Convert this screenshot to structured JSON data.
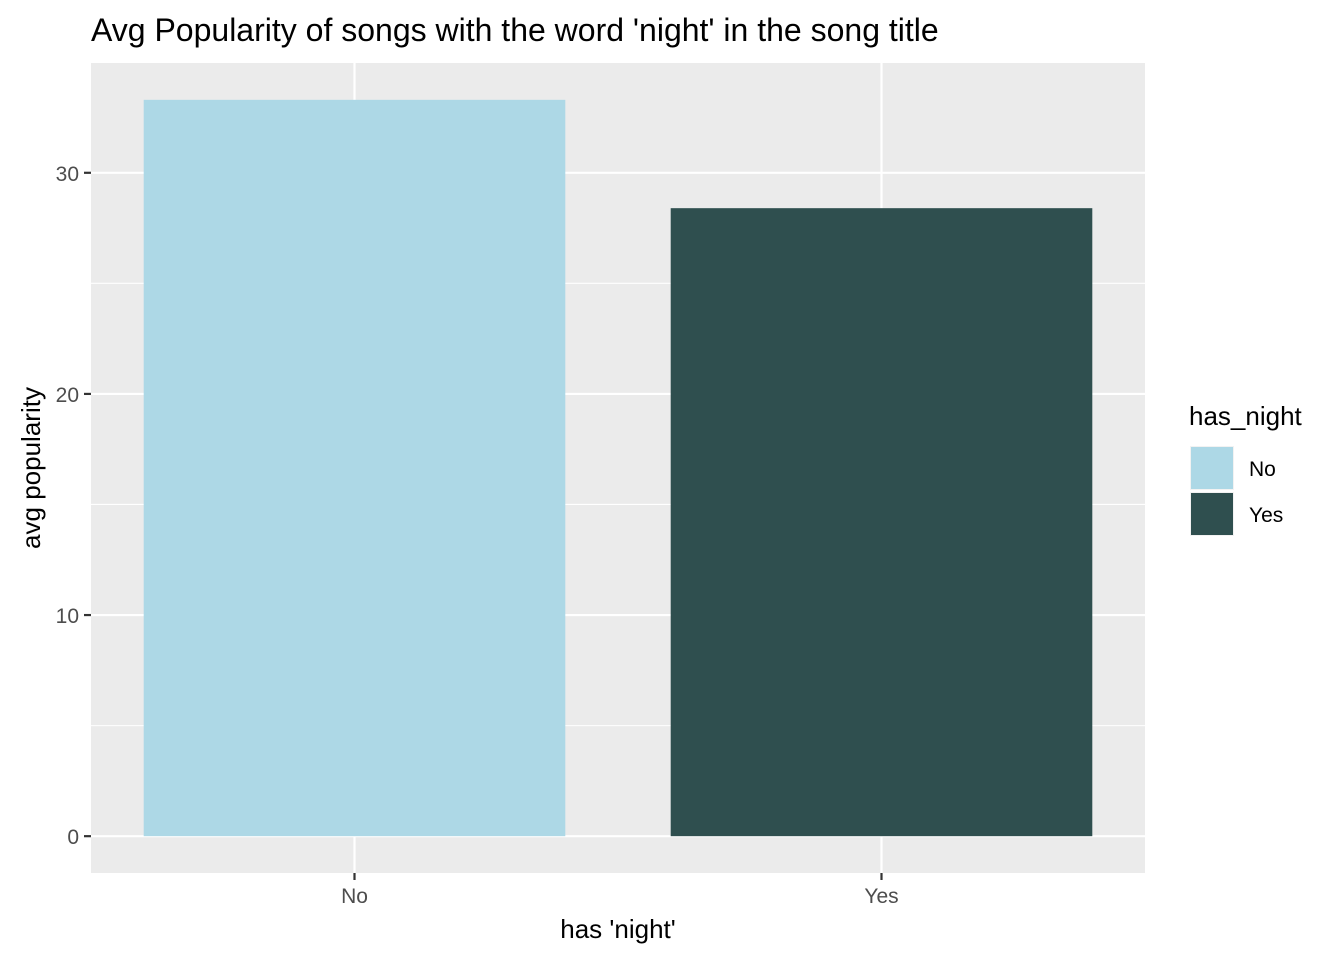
{
  "chart_data": {
    "type": "bar",
    "title": "Avg Popularity of songs with the word 'night' in the song title",
    "xlabel": "has 'night'",
    "ylabel": "avg popularity",
    "categories": [
      "No",
      "Yes"
    ],
    "values": [
      33.3,
      28.4
    ],
    "colors": [
      "#add8e6",
      "#2f4f4f"
    ],
    "ylim": [
      -1.665,
      34.965
    ],
    "yticks": [
      0,
      10,
      20,
      30
    ],
    "grid": true,
    "panel_background": "#ebebeb",
    "legend": {
      "title": "has_night",
      "position": "right",
      "entries": [
        {
          "label": "No",
          "color": "#add8e6"
        },
        {
          "label": "Yes",
          "color": "#2f4f4f"
        }
      ]
    }
  }
}
